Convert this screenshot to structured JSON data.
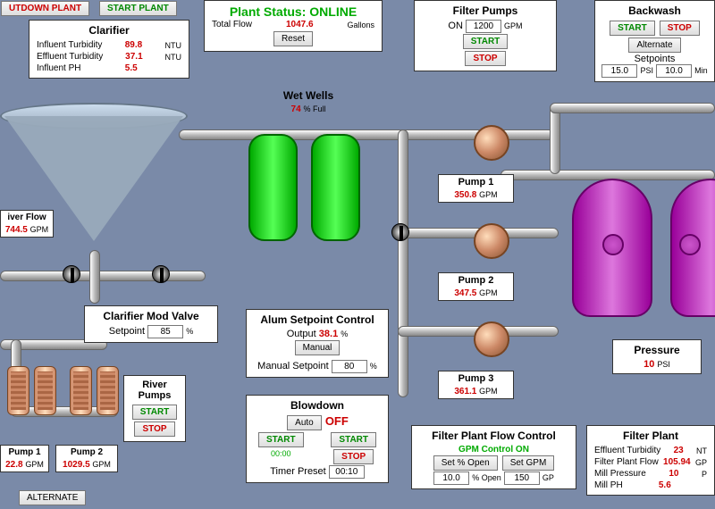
{
  "topButtons": {
    "shutdown": "UTDOWN PLANT",
    "start": "START PLANT"
  },
  "status": {
    "title": "Plant Status: ONLINE",
    "flowLabel": "Total Flow",
    "flowValue": "1047.6",
    "flowUnit": "Gallons",
    "reset": "Reset"
  },
  "clarifier": {
    "title": "Clarifier",
    "rows": [
      {
        "l": "Influent Turbidity",
        "v": "89.8",
        "u": "NTU"
      },
      {
        "l": "Effluent Turbidity",
        "v": "37.1",
        "u": "NTU"
      },
      {
        "l": "Influent PH",
        "v": "5.5",
        "u": ""
      }
    ]
  },
  "riverFlow": {
    "title": "iver Flow",
    "value": "744.5",
    "unit": "GPM"
  },
  "clarValve": {
    "title": "Clarifier Mod Valve",
    "setpointLabel": "Setpoint",
    "setpoint": "85",
    "unit": "%"
  },
  "riverPumps": {
    "title": "River Pumps",
    "start": "START",
    "stop": "STOP"
  },
  "pump1": {
    "title": "Pump 1",
    "value": "22.8",
    "unit": "GPM"
  },
  "pump2": {
    "title": "Pump 2",
    "value": "1029.5",
    "unit": "GPM"
  },
  "alternate": "ALTERNATE",
  "wetWells": {
    "title": "Wet Wells",
    "value": "74",
    "unit": "% Full"
  },
  "alum": {
    "title": "Alum Setpoint Control",
    "outputLabel": "Output",
    "output": "38.1",
    "outputUnit": "%",
    "manual": "Manual",
    "manualLabel": "Manual Setpoint",
    "manualVal": "80",
    "manualUnit": "%"
  },
  "blowdown": {
    "title": "Blowdown",
    "auto": "Auto",
    "status": "OFF",
    "start": "START",
    "start2": "START",
    "time": "00:00",
    "stop": "STOP",
    "timerLabel": "Timer Preset",
    "timer": "00:10"
  },
  "filterPumps": {
    "title": "Filter Pumps",
    "onLabel": "ON",
    "value": "1200",
    "unit": "GPM",
    "start": "START",
    "stop": "STOP"
  },
  "p1": {
    "title": "Pump 1",
    "value": "350.8",
    "unit": "GPM"
  },
  "p2": {
    "title": "Pump 2",
    "value": "347.5",
    "unit": "GPM"
  },
  "p3": {
    "title": "Pump 3",
    "value": "361.1",
    "unit": "GPM"
  },
  "flowControl": {
    "title": "Filter Plant Flow Control",
    "sub": "GPM Control ON",
    "setOpen": "Set % Open",
    "setGpm": "Set GPM",
    "openVal": "10.0",
    "openUnit": "% Open",
    "gpmVal": "150",
    "gpmUnit": "GP"
  },
  "backwash": {
    "title": "Backwash",
    "start": "START",
    "stop": "STOP",
    "alternate": "Alternate",
    "setpoints": "Setpoints",
    "psi": "15.0",
    "psiUnit": "PSI",
    "min": "10.0",
    "minUnit": "Min"
  },
  "pressure": {
    "title": "Pressure",
    "value": "10",
    "unit": "PSI"
  },
  "filterPlant": {
    "title": "Filter Plant",
    "rows": [
      {
        "l": "Effluent Turbidity",
        "v": "23",
        "u": "NT"
      },
      {
        "l": "Filter Plant Flow",
        "v": "105.94",
        "u": "GP"
      },
      {
        "l": "Mill Pressure",
        "v": "10",
        "u": "P"
      },
      {
        "l": "Mill PH",
        "v": "5.6",
        "u": ""
      }
    ]
  }
}
